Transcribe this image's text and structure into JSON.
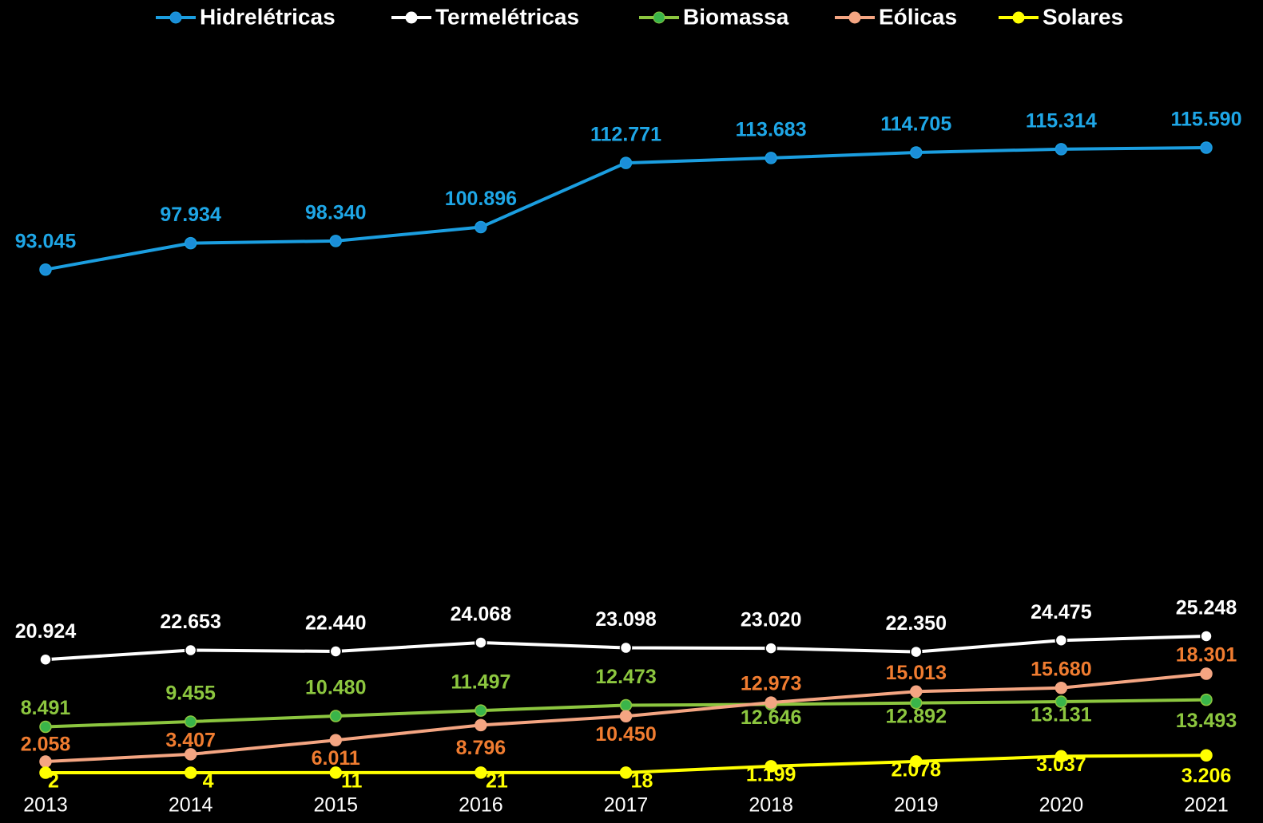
{
  "chart_data": {
    "type": "line",
    "categories": [
      "2013",
      "2014",
      "2015",
      "2016",
      "2017",
      "2018",
      "2019",
      "2020",
      "2021"
    ],
    "series": [
      {
        "name": "Hidrelétricas",
        "color": "#1b9ee0",
        "marker_color": "#1b8ed8",
        "label_color": "#1ea6e6",
        "values": [
          93045,
          97934,
          98340,
          100896,
          112771,
          113683,
          114705,
          115314,
          115590
        ],
        "value_labels": [
          "93.045",
          "97.934",
          "98.340",
          "100.896",
          "112.771",
          "113.683",
          "114.705",
          "115.314",
          "115.590"
        ]
      },
      {
        "name": "Termelétricas",
        "color": "#ffffff",
        "marker_color": "#ffffff",
        "label_color": "#ffffff",
        "values": [
          20924,
          22653,
          22440,
          24068,
          23098,
          23020,
          22350,
          24475,
          25248
        ],
        "value_labels": [
          "20.924",
          "22.653",
          "22.440",
          "24.068",
          "23.098",
          "23.020",
          "22.350",
          "24.475",
          "25.248"
        ]
      },
      {
        "name": "Biomassa",
        "color": "#8cc63f",
        "marker_color": "#3ab54a",
        "label_color": "#8cc63f",
        "values": [
          8491,
          9455,
          10480,
          11497,
          12473,
          12646,
          12892,
          13131,
          13493
        ],
        "value_labels": [
          "8.491",
          "9.455",
          "10.480",
          "11.497",
          "12.473",
          "12.646",
          "12.892",
          "13.131",
          "13.493"
        ]
      },
      {
        "name": "Eólicas",
        "color": "#f4a582",
        "marker_color": "#f4a582",
        "label_color": "#f07c30",
        "values": [
          2058,
          3407,
          6011,
          8796,
          10450,
          12973,
          15013,
          15680,
          18301
        ],
        "value_labels": [
          "2.058",
          "3.407",
          "6.011",
          "8.796",
          "10.450",
          "12.973",
          "15.013",
          "15.680",
          "18.301"
        ]
      },
      {
        "name": "Solares",
        "color": "#ffff00",
        "marker_color": "#ffff00",
        "label_color": "#ffff00",
        "values": [
          2,
          4,
          11,
          21,
          18,
          1199,
          2078,
          3037,
          3206
        ],
        "value_labels": [
          "2",
          "4",
          "11",
          "21",
          "18",
          "1.199",
          "2.078",
          "3.037",
          "3.206"
        ]
      }
    ]
  }
}
